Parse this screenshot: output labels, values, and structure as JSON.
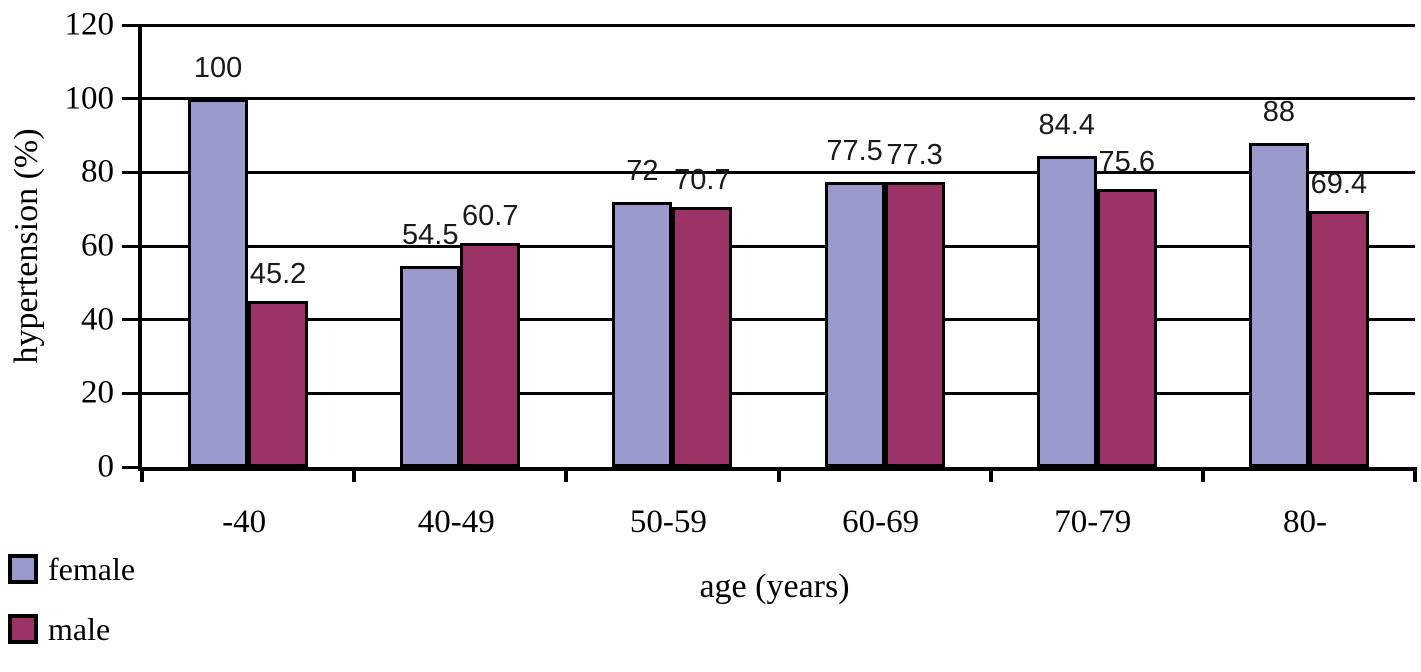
{
  "chart_data": {
    "type": "bar",
    "categories": [
      "-40",
      "40-49",
      "50-59",
      "60-69",
      "70-79",
      "80-"
    ],
    "series": [
      {
        "name": "female",
        "color": "#999acb",
        "values": [
          100,
          54.5,
          72,
          77.5,
          84.4,
          88
        ],
        "labels": [
          "100",
          "54.5",
          "72",
          "77.5",
          "84.4",
          "88"
        ]
      },
      {
        "name": "male",
        "color": "#9a3366",
        "values": [
          45.2,
          60.7,
          70.7,
          77.3,
          75.6,
          69.4
        ],
        "labels": [
          "45.2",
          "60.7",
          "70.7",
          "77.3",
          "75.6",
          "69.4"
        ]
      }
    ],
    "title": "",
    "xlabel": "age (years)",
    "ylabel": "hypertension (%)",
    "ylim": [
      0,
      120
    ],
    "ytick_step": 20,
    "ytick_labels": [
      "0",
      "20",
      "40",
      "60",
      "80",
      "100",
      "120"
    ],
    "grid": true,
    "gridline_color": "#000000",
    "bar_outline_color": "#000000",
    "legend_position": "bottom-left",
    "legend_entries": [
      "female",
      "male"
    ]
  }
}
